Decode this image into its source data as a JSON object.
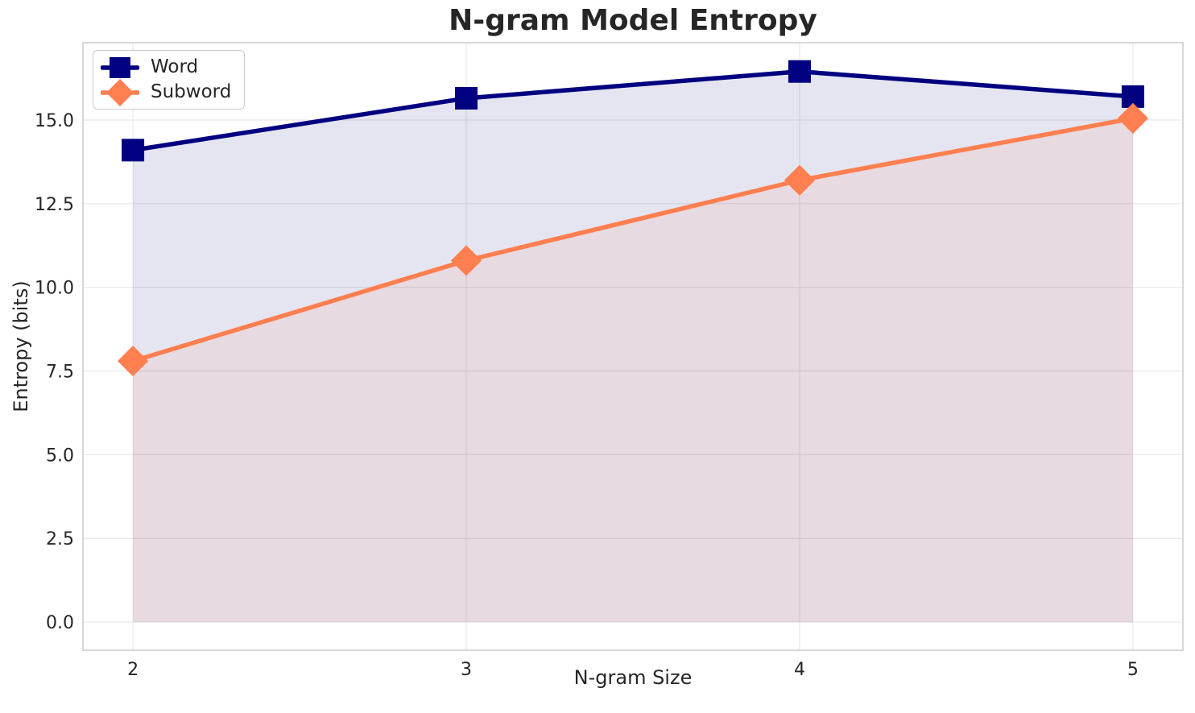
{
  "chart_data": {
    "type": "line",
    "title": "N-gram Model Entropy",
    "xlabel": "N-gram Size",
    "ylabel": "Entropy (bits)",
    "x": [
      2,
      3,
      4,
      5
    ],
    "series": [
      {
        "name": "Word",
        "color": "#000080",
        "marker": "square",
        "values": [
          14.1,
          15.65,
          16.45,
          15.7
        ],
        "fill_to_zero": true
      },
      {
        "name": "Subword",
        "color": "#FF7F50",
        "marker": "diamond",
        "values": [
          7.8,
          10.8,
          13.2,
          15.05
        ],
        "fill_to_zero": true
      }
    ],
    "xlim": [
      1.85,
      5.15
    ],
    "ylim": [
      -0.84,
      17.31
    ],
    "xtick_values": [
      2,
      3,
      4,
      5
    ],
    "xtick_labels": [
      "2",
      "3",
      "4",
      "5"
    ],
    "ytick_values": [
      0,
      2.5,
      5,
      7.5,
      10,
      12.5,
      15
    ],
    "ytick_labels": [
      "0.0",
      "2.5",
      "5.0",
      "7.5",
      "10.0",
      "12.5",
      "15.0"
    ],
    "grid": true,
    "fill_alpha": 0.1,
    "legend": {
      "position": "upper-left",
      "labels": [
        "Word",
        "Subword"
      ]
    },
    "colors": {
      "grid": "#e8e8e8",
      "spine": "#cccccc",
      "text": "#262626",
      "background": "#ffffff"
    }
  }
}
